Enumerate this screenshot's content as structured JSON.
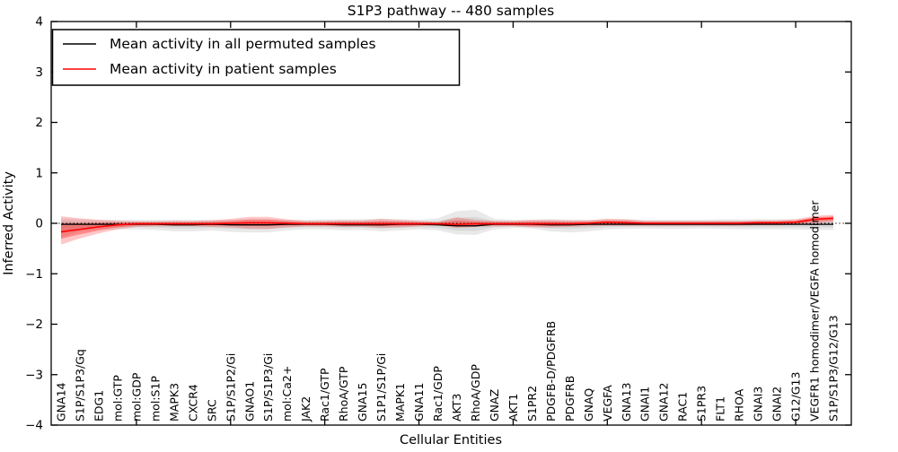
{
  "chart_data": {
    "type": "line",
    "title": "S1P3 pathway -- 480 samples",
    "xlabel": "Cellular Entities",
    "ylabel": "Inferred Activity",
    "ylim": [
      -4,
      4
    ],
    "yticks": [
      -4,
      -3,
      -2,
      -1,
      0,
      1,
      2,
      3,
      4
    ],
    "x_major_tick_every": 5,
    "grid": false,
    "zero_line_style": "dotted",
    "legend": {
      "position": "upper left",
      "entries": [
        {
          "label": "Mean activity in all permuted samples",
          "color": "#000000"
        },
        {
          "label": "Mean activity in patient samples",
          "color": "#ff0000"
        }
      ]
    },
    "categories": [
      "GNA14",
      "S1P/S1P3/Gq",
      "EDG1",
      "mol:GTP",
      "mol:GDP",
      "mol:S1P",
      "MAPK3",
      "CXCR4",
      "SRC",
      "S1P/S1P2/Gi",
      "GNAO1",
      "S1P/S1P3/Gi",
      "mol:Ca2+",
      "JAK2",
      "Rac1/GTP",
      "RhoA/GTP",
      "GNA15",
      "S1P1/S1P/Gi",
      "MAPK1",
      "GNA11",
      "Rac1/GDP",
      "AKT3",
      "RhoA/GDP",
      "GNAZ",
      "AKT1",
      "S1PR2",
      "PDGFB-D/PDGFRB",
      "PDGFRB",
      "GNAQ",
      "VEGFA",
      "GNA13",
      "GNAI1",
      "GNA12",
      "RAC1",
      "S1PR3",
      "FLT1",
      "RHOA",
      "GNAI3",
      "GNAI2",
      "G12/G13",
      "VEGFR1 homodimer/VEGFA homodimer",
      "S1P/S1P3/G12/G13"
    ],
    "series": [
      {
        "name": "Mean activity in all permuted samples",
        "color": "#000000",
        "band_color": "#999999",
        "values": [
          -0.02,
          -0.02,
          -0.02,
          -0.02,
          -0.02,
          -0.02,
          -0.03,
          -0.03,
          -0.02,
          -0.03,
          -0.03,
          -0.03,
          -0.02,
          -0.02,
          -0.02,
          -0.03,
          -0.03,
          -0.03,
          -0.02,
          -0.02,
          -0.03,
          -0.05,
          -0.05,
          -0.02,
          -0.02,
          -0.02,
          -0.03,
          -0.03,
          -0.02,
          -0.02,
          -0.02,
          -0.02,
          -0.02,
          -0.02,
          -0.02,
          -0.02,
          -0.02,
          -0.02,
          -0.02,
          -0.02,
          -0.02,
          -0.02
        ],
        "band_lo": [
          -0.28,
          -0.16,
          -0.12,
          -0.12,
          -0.12,
          -0.13,
          -0.16,
          -0.16,
          -0.14,
          -0.17,
          -0.18,
          -0.18,
          -0.14,
          -0.12,
          -0.12,
          -0.14,
          -0.13,
          -0.16,
          -0.14,
          -0.12,
          -0.14,
          -0.22,
          -0.23,
          -0.12,
          -0.09,
          -0.1,
          -0.16,
          -0.18,
          -0.16,
          -0.12,
          -0.11,
          -0.1,
          -0.11,
          -0.11,
          -0.1,
          -0.11,
          -0.12,
          -0.12,
          -0.12,
          -0.12,
          -0.13,
          -0.13
        ],
        "band_hi": [
          0.1,
          0.08,
          0.07,
          0.07,
          0.07,
          0.07,
          0.07,
          0.07,
          0.07,
          0.07,
          0.08,
          0.08,
          0.07,
          0.07,
          0.08,
          0.08,
          0.08,
          0.09,
          0.08,
          0.07,
          0.1,
          0.24,
          0.27,
          0.09,
          0.07,
          0.07,
          0.08,
          0.07,
          0.07,
          0.08,
          0.08,
          0.07,
          0.07,
          0.07,
          0.07,
          0.08,
          0.08,
          0.08,
          0.08,
          0.08,
          0.09,
          0.09
        ]
      },
      {
        "name": "Mean activity in patient samples",
        "color": "#ff0000",
        "band_color": "#ff0000",
        "values": [
          -0.17,
          -0.12,
          -0.07,
          -0.03,
          -0.01,
          -0.01,
          -0.01,
          -0.01,
          -0.01,
          0.0,
          0.01,
          0.01,
          0.0,
          -0.01,
          -0.01,
          -0.01,
          -0.01,
          -0.01,
          -0.01,
          -0.01,
          -0.01,
          -0.02,
          -0.01,
          -0.01,
          -0.01,
          -0.01,
          -0.01,
          -0.01,
          0.0,
          0.02,
          0.01,
          0.0,
          0.0,
          0.0,
          0.0,
          0.0,
          0.0,
          0.01,
          0.01,
          0.02,
          0.08,
          0.1
        ],
        "band_lo": [
          -0.42,
          -0.3,
          -0.2,
          -0.12,
          -0.07,
          -0.06,
          -0.06,
          -0.06,
          -0.07,
          -0.08,
          -0.11,
          -0.11,
          -0.08,
          -0.06,
          -0.06,
          -0.07,
          -0.07,
          -0.09,
          -0.08,
          -0.06,
          -0.04,
          -0.09,
          -0.07,
          -0.06,
          -0.06,
          -0.08,
          -0.08,
          -0.07,
          -0.06,
          -0.05,
          -0.05,
          -0.05,
          -0.05,
          -0.05,
          -0.05,
          -0.05,
          -0.05,
          -0.04,
          -0.04,
          -0.03,
          0.0,
          0.02
        ],
        "band_hi": [
          0.14,
          0.1,
          0.07,
          0.05,
          0.04,
          0.04,
          0.05,
          0.05,
          0.06,
          0.09,
          0.13,
          0.13,
          0.08,
          0.05,
          0.05,
          0.06,
          0.06,
          0.09,
          0.07,
          0.05,
          0.03,
          0.12,
          0.07,
          0.05,
          0.05,
          0.07,
          0.07,
          0.06,
          0.06,
          0.09,
          0.08,
          0.05,
          0.05,
          0.05,
          0.05,
          0.05,
          0.05,
          0.06,
          0.06,
          0.08,
          0.15,
          0.17
        ]
      }
    ]
  }
}
